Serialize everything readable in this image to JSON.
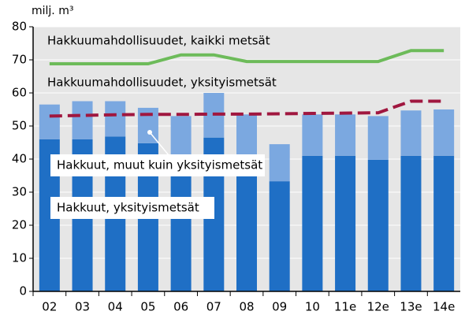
{
  "chart_data": {
    "type": "bar",
    "unit_label": "milj. m³",
    "categories": [
      "02",
      "03",
      "04",
      "05",
      "06",
      "07",
      "08",
      "09",
      "10",
      "11e",
      "12e",
      "13e",
      "14e"
    ],
    "series": [
      {
        "name": "Hakkuut, yksityismetsät",
        "kind": "bar",
        "color": "#1f6fc5",
        "values": [
          46,
          46,
          46.8,
          44.8,
          39,
          46.5,
          38,
          33.3,
          41,
          41,
          39.8,
          41,
          41
        ]
      },
      {
        "name": "Hakkuut, muut kuin yksityismetsät",
        "kind": "bar",
        "color": "#7ba8e0",
        "values": [
          10.5,
          11.5,
          10.7,
          10.7,
          14,
          13.5,
          15.5,
          11.2,
          12.5,
          12.5,
          13.2,
          13.7,
          14
        ]
      },
      {
        "name": "Hakkuumahdollisuudet, kaikki metsät",
        "kind": "line",
        "color": "#6dbb5a",
        "values": [
          68.8,
          68.8,
          68.8,
          68.8,
          71.5,
          71.5,
          69.5,
          69.5,
          69.5,
          69.5,
          69.5,
          72.8,
          72.8
        ]
      },
      {
        "name": "Hakkuumahdollisuudet, yksityismetsät",
        "kind": "dashed",
        "color": "#a0173f",
        "values": [
          53,
          53.2,
          53.4,
          53.5,
          53.5,
          53.6,
          53.6,
          53.7,
          53.8,
          53.9,
          54,
          57.5,
          57.5
        ]
      }
    ],
    "ylim": [
      0,
      80
    ],
    "yticks": [
      0,
      10,
      20,
      30,
      40,
      50,
      60,
      70,
      80
    ],
    "grid": true
  }
}
